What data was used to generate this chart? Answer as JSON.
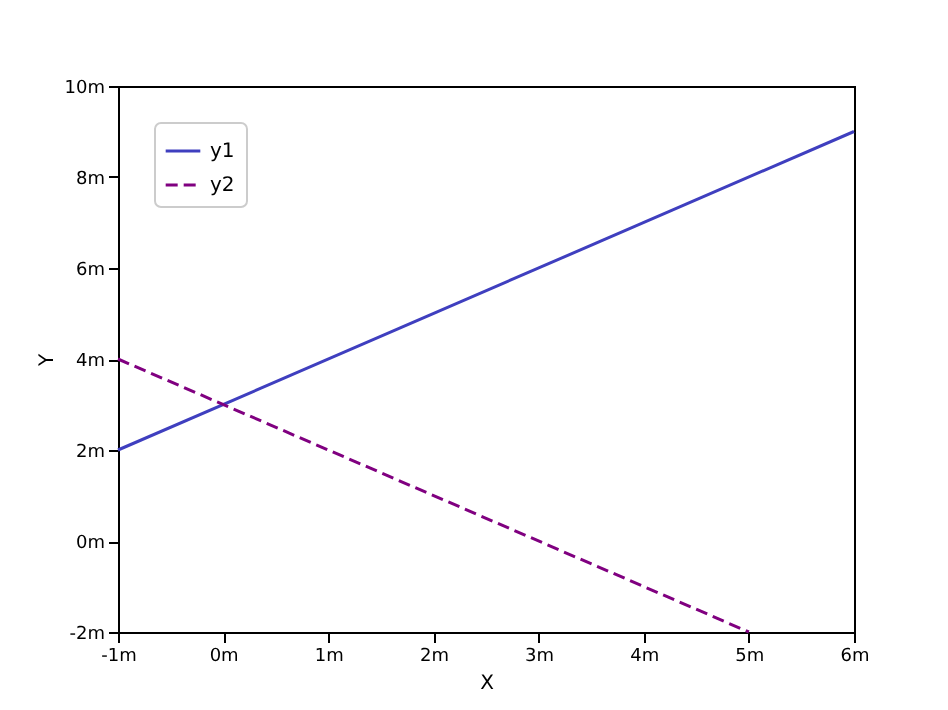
{
  "chart_data": {
    "type": "line",
    "xlabel": "X",
    "ylabel": "Y",
    "series": [
      {
        "name": "y1",
        "color": "#3f3fbf",
        "line_style": "solid",
        "x": [
          -1,
          6
        ],
        "values": [
          2,
          9
        ]
      },
      {
        "name": "y2",
        "color": "#800080",
        "line_style": "dashed",
        "x": [
          -1,
          5
        ],
        "values": [
          4,
          -2
        ]
      }
    ],
    "xlim": [
      -1,
      6
    ],
    "ylim": [
      -2,
      10
    ],
    "xticks": [
      {
        "value": -1,
        "label": "-1m"
      },
      {
        "value": 0,
        "label": "0m"
      },
      {
        "value": 1,
        "label": "1m"
      },
      {
        "value": 2,
        "label": "2m"
      },
      {
        "value": 3,
        "label": "3m"
      },
      {
        "value": 4,
        "label": "4m"
      },
      {
        "value": 5,
        "label": "5m"
      },
      {
        "value": 6,
        "label": "6m"
      }
    ],
    "yticks": [
      {
        "value": -2,
        "label": "-2m"
      },
      {
        "value": 0,
        "label": "0m"
      },
      {
        "value": 2,
        "label": "2m"
      },
      {
        "value": 4,
        "label": "4m"
      },
      {
        "value": 6,
        "label": "6m"
      },
      {
        "value": 8,
        "label": "8m"
      },
      {
        "value": 10,
        "label": "10m"
      }
    ],
    "grid": false,
    "legend": "top left",
    "marker": "none"
  }
}
